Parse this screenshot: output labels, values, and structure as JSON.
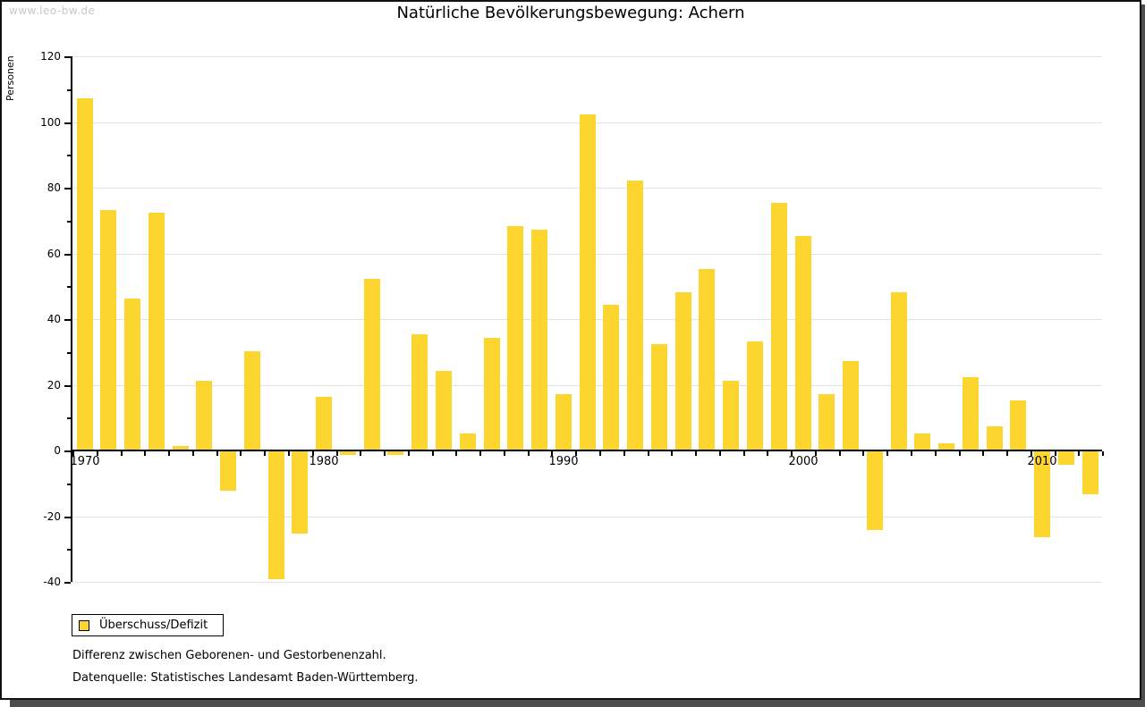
{
  "meta": {
    "watermark": "www.leo-bw.de"
  },
  "title": "Natürliche Bevölkerungsbewegung: Achern",
  "y_axis_label": "Personen",
  "legend": {
    "label": "Überschuss/Defizit"
  },
  "notes": {
    "line1": "Differenz zwischen Geborenen- und Gestorbenenzahl.",
    "line2": "Datenquelle: Statistisches Landesamt Baden-Württemberg."
  },
  "colors": {
    "bar": "#FCD52E",
    "grid": "#E2E2E2",
    "axis": "#000000",
    "watermark": "#C8C8C8",
    "frame_border": "#121212",
    "shadow": "#4D4D4D"
  },
  "chart_data": {
    "type": "bar",
    "title": "Natürliche Bevölkerungsbewegung: Achern",
    "xlabel": "",
    "ylabel": "Personen",
    "ylim": [
      -40,
      120
    ],
    "ytick_step": 20,
    "ytick_minor_step": 10,
    "grid": "horizontal-major",
    "legend_position": "bottom-left",
    "x_decade_labels": [
      1970,
      1980,
      1990,
      2000,
      2010
    ],
    "series_name": "Überschuss/Defizit",
    "x": [
      1970,
      1971,
      1972,
      1973,
      1974,
      1975,
      1976,
      1977,
      1978,
      1979,
      1980,
      1981,
      1982,
      1983,
      1984,
      1985,
      1986,
      1987,
      1988,
      1989,
      1990,
      1991,
      1992,
      1993,
      1994,
      1995,
      1996,
      1997,
      1998,
      1999,
      2000,
      2001,
      2002,
      2003,
      2004,
      2005,
      2006,
      2007,
      2008,
      2009,
      2010,
      2011,
      2012
    ],
    "values": [
      107,
      73,
      46,
      72,
      1,
      21,
      -12,
      30,
      -39,
      -25,
      16,
      -1,
      52,
      -1,
      35,
      24,
      5,
      34,
      68,
      67,
      17,
      102,
      44,
      82,
      32,
      48,
      55,
      21,
      33,
      75,
      65,
      17,
      27,
      -24,
      48,
      5,
      2,
      22,
      7,
      15,
      -26,
      -4,
      -13
    ]
  }
}
